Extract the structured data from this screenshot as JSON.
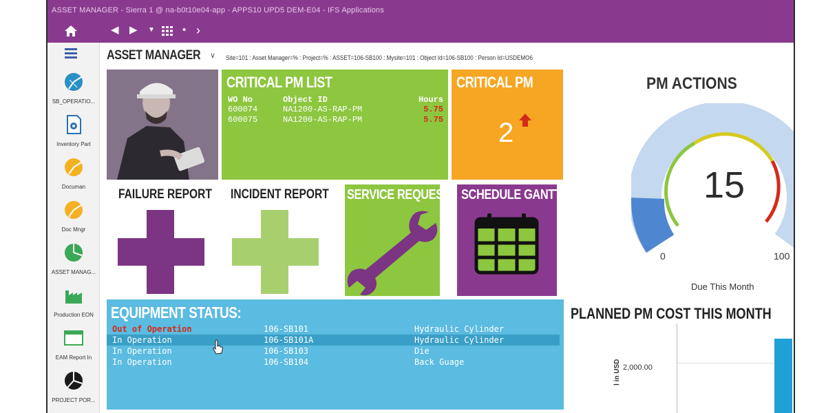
{
  "window": {
    "title": "ASSET MANAGER - Sierra 1 @ na-b0t10e04-app - APPS10 UPD5 DEM-E04 - IFS Applications"
  },
  "sidebar": {
    "items": [
      {
        "label": "SB_OPERATIO...",
        "icon": "pie-chart-icon"
      },
      {
        "label": "Inventory Part",
        "icon": "document-gear-icon"
      },
      {
        "label": "Documan",
        "icon": "pie-chart-icon"
      },
      {
        "label": "Doc Mngr",
        "icon": "pie-chart-icon"
      },
      {
        "label": "ASSET MANAG...",
        "icon": "pie-chart-icon"
      },
      {
        "label": "Production EON",
        "icon": "factory-icon"
      },
      {
        "label": "EAM Report In",
        "icon": "window-icon"
      },
      {
        "label": "PROJECT POR...",
        "icon": "pie-chart-icon"
      }
    ]
  },
  "header": {
    "title": "ASSET MANAGER",
    "context": "Site=101 : Asset Manager=% : Project=% : ASSET=106-SB100 : Mysite=101 : Object Id=106-SB100 : Person Id=USDEMO6"
  },
  "critical_pm_list": {
    "title": "CRITICAL PM LIST",
    "columns": [
      "WO No",
      "Object ID",
      "Hours"
    ],
    "rows": [
      {
        "wo": "600074",
        "object": "NA1200-AS-RAP-PM",
        "hours": "5.75"
      },
      {
        "wo": "600075",
        "object": "NA1200-AS-RAP-PM",
        "hours": "5.75"
      }
    ]
  },
  "critical_pm": {
    "title": "CRITICAL PM",
    "value": "2"
  },
  "failure_report": {
    "title": "FAILURE REPORT"
  },
  "incident_report": {
    "title": "INCIDENT REPORT"
  },
  "service_request": {
    "title": "SERVICE REQUEST"
  },
  "schedule_gantt": {
    "title": "SCHEDULE GANTT"
  },
  "equipment_status": {
    "title": "EQUIPMENT STATUS:",
    "rows": [
      {
        "status": "Out of Operation",
        "object": "106-SB101",
        "description": "Hydraulic Cylinder"
      },
      {
        "status": "In Operation",
        "object": "106-SB101A",
        "description": "Hydraulic Cylinder"
      },
      {
        "status": "In Operation",
        "object": "106-SB103",
        "description": "Die"
      },
      {
        "status": "In Operation",
        "object": "106-SB104",
        "description": "Back Guage"
      }
    ]
  },
  "pm_actions": {
    "title": "PM ACTIONS",
    "value": "15",
    "min": "0",
    "max": "100",
    "caption": "Due This Month"
  },
  "planned_cost": {
    "title": "PLANNED PM COST THIS MONTH",
    "y_tick": "2,000.00",
    "y_title": "l in USD"
  },
  "colors": {
    "purple": "#8a3a8e",
    "green": "#8dc63f",
    "orange": "#f6a623",
    "blue": "#5bbbe0",
    "red": "#d42a1a"
  }
}
